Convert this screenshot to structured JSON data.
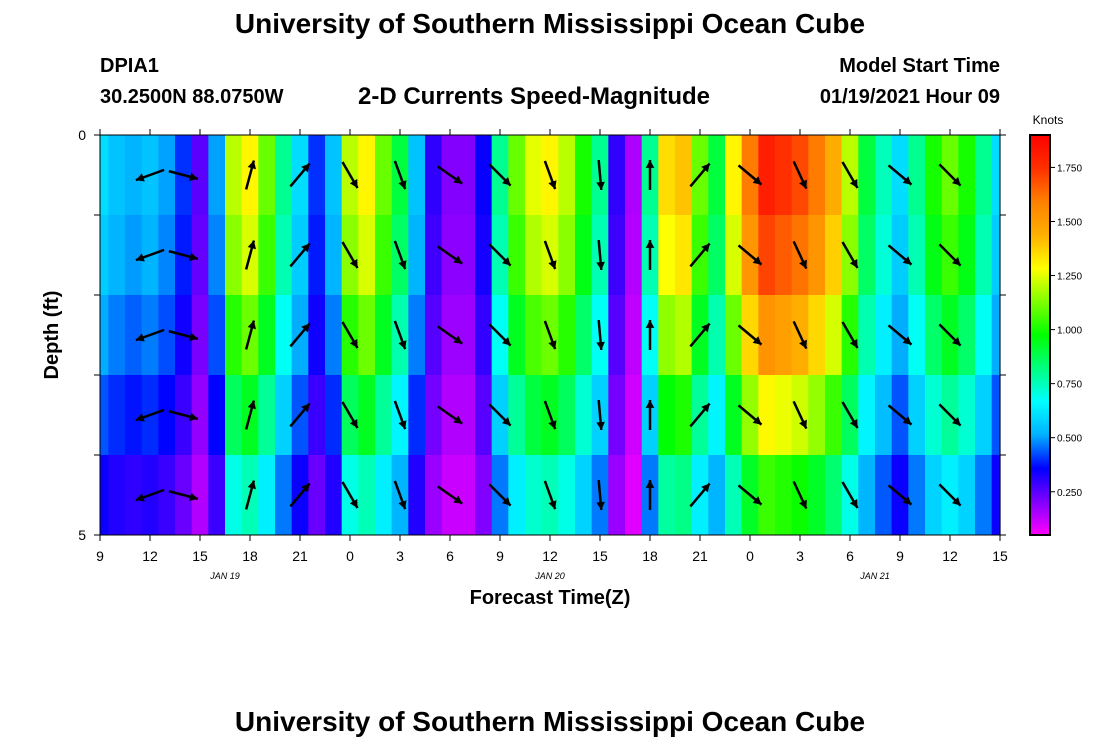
{
  "header": {
    "title": "University of Southern Mississippi Ocean Cube",
    "station": "DPIA1",
    "coordinates": "30.2500N 88.0750W",
    "plot_title": "2-D Currents Speed-Magnitude",
    "model_label": "Model Start Time",
    "model_time": "01/19/2021 Hour 09"
  },
  "footer": {
    "title": "University of Southern Mississippi Ocean Cube"
  },
  "colors": {
    "scale": [
      "#ff00ff",
      "#8000ff",
      "#0000ff",
      "#00b0ff",
      "#00ffff",
      "#00ff80",
      "#00ff00",
      "#80ff00",
      "#ffff00",
      "#ffb000",
      "#ff8000",
      "#ff3000",
      "#ff0000"
    ]
  },
  "chart_data": {
    "type": "heatmap",
    "title": "2-D Currents Speed-Magnitude",
    "xlabel": "Forecast Time(Z)",
    "ylabel": "Depth (ft)",
    "x_start_hour": 9,
    "x_end_hour": 63,
    "xticks": [
      {
        "hour": 9,
        "label": "9"
      },
      {
        "hour": 12,
        "label": "12"
      },
      {
        "hour": 15,
        "label": "15"
      },
      {
        "hour": 18,
        "label": "18"
      },
      {
        "hour": 21,
        "label": "21"
      },
      {
        "hour": 24,
        "label": "0"
      },
      {
        "hour": 27,
        "label": "3"
      },
      {
        "hour": 30,
        "label": "6"
      },
      {
        "hour": 33,
        "label": "9"
      },
      {
        "hour": 36,
        "label": "12"
      },
      {
        "hour": 39,
        "label": "15"
      },
      {
        "hour": 42,
        "label": "18"
      },
      {
        "hour": 45,
        "label": "21"
      },
      {
        "hour": 48,
        "label": "0"
      },
      {
        "hour": 51,
        "label": "3"
      },
      {
        "hour": 54,
        "label": "6"
      },
      {
        "hour": 57,
        "label": "9"
      },
      {
        "hour": 60,
        "label": "12"
      },
      {
        "hour": 63,
        "label": "15"
      }
    ],
    "date_labels": [
      {
        "hour": 16.5,
        "label": "JAN 19"
      },
      {
        "hour": 36,
        "label": "JAN 20"
      },
      {
        "hour": 55.5,
        "label": "JAN 21"
      }
    ],
    "ylim": [
      0,
      5
    ],
    "yticks": [
      {
        "value": 0,
        "label": "0"
      },
      {
        "value": 5,
        "label": "5"
      }
    ],
    "colorbar": {
      "unit": "Knots",
      "min": 0.05,
      "max": 1.9,
      "ticks": [
        {
          "value": 0.25,
          "label": "0.250"
        },
        {
          "value": 0.5,
          "label": "0.500"
        },
        {
          "value": 0.75,
          "label": "0.750"
        },
        {
          "value": 1.0,
          "label": "1.000"
        },
        {
          "value": 1.25,
          "label": "1.250"
        },
        {
          "value": 1.5,
          "label": "1.500"
        },
        {
          "value": 1.75,
          "label": "1.750"
        }
      ]
    },
    "depth_layers": [
      0,
      1,
      2,
      3,
      4,
      5
    ],
    "speed_profile": [
      {
        "hour": 9,
        "v": 0.6
      },
      {
        "hour": 10,
        "v": 0.55
      },
      {
        "hour": 11,
        "v": 0.52
      },
      {
        "hour": 12,
        "v": 0.55
      },
      {
        "hour": 13,
        "v": 0.5
      },
      {
        "hour": 14,
        "v": 0.4
      },
      {
        "hour": 15,
        "v": 0.25
      },
      {
        "hour": 16,
        "v": 0.5
      },
      {
        "hour": 17,
        "v": 1.2
      },
      {
        "hour": 18,
        "v": 1.3
      },
      {
        "hour": 19,
        "v": 1.1
      },
      {
        "hour": 20,
        "v": 0.8
      },
      {
        "hour": 21,
        "v": 0.6
      },
      {
        "hour": 22,
        "v": 0.4
      },
      {
        "hour": 23,
        "v": 0.55
      },
      {
        "hour": 24,
        "v": 1.2
      },
      {
        "hour": 25,
        "v": 1.3
      },
      {
        "hour": 26,
        "v": 1.1
      },
      {
        "hour": 27,
        "v": 0.9
      },
      {
        "hour": 28,
        "v": 0.55
      },
      {
        "hour": 29,
        "v": 0.3
      },
      {
        "hour": 30,
        "v": 0.2
      },
      {
        "hour": 31,
        "v": 0.2
      },
      {
        "hour": 32,
        "v": 0.35
      },
      {
        "hour": 33,
        "v": 0.8
      },
      {
        "hour": 34,
        "v": 1.1
      },
      {
        "hour": 35,
        "v": 1.25
      },
      {
        "hour": 36,
        "v": 1.3
      },
      {
        "hour": 37,
        "v": 1.2
      },
      {
        "hour": 38,
        "v": 1.0
      },
      {
        "hour": 39,
        "v": 0.8
      },
      {
        "hour": 40,
        "v": 0.3
      },
      {
        "hour": 41,
        "v": 0.15
      },
      {
        "hour": 42,
        "v": 0.8
      },
      {
        "hour": 43,
        "v": 1.35
      },
      {
        "hour": 44,
        "v": 1.4
      },
      {
        "hour": 45,
        "v": 1.1
      },
      {
        "hour": 46,
        "v": 0.9
      },
      {
        "hour": 47,
        "v": 1.3
      },
      {
        "hour": 48,
        "v": 1.6
      },
      {
        "hour": 49,
        "v": 1.8
      },
      {
        "hour": 50,
        "v": 1.75
      },
      {
        "hour": 51,
        "v": 1.7
      },
      {
        "hour": 52,
        "v": 1.6
      },
      {
        "hour": 53,
        "v": 1.45
      },
      {
        "hour": 54,
        "v": 1.2
      },
      {
        "hour": 55,
        "v": 0.9
      },
      {
        "hour": 56,
        "v": 0.75
      },
      {
        "hour": 57,
        "v": 0.6
      },
      {
        "hour": 58,
        "v": 0.8
      },
      {
        "hour": 59,
        "v": 1.0
      },
      {
        "hour": 60,
        "v": 1.1
      },
      {
        "hour": 61,
        "v": 1.0
      },
      {
        "hour": 62,
        "v": 0.8
      },
      {
        "hour": 63,
        "v": 0.6
      }
    ],
    "depth_factors": [
      1.0,
      0.95,
      0.85,
      0.72,
      0.58
    ],
    "vectors": [
      {
        "hour": 12,
        "angle": 200
      },
      {
        "hour": 14,
        "angle": -15
      },
      {
        "hour": 18,
        "angle": 75
      },
      {
        "hour": 21,
        "angle": 50
      },
      {
        "hour": 24,
        "angle": -60
      },
      {
        "hour": 27,
        "angle": -70
      },
      {
        "hour": 30,
        "angle": -35
      },
      {
        "hour": 33,
        "angle": -45
      },
      {
        "hour": 36,
        "angle": -70
      },
      {
        "hour": 39,
        "angle": -85
      },
      {
        "hour": 42,
        "angle": 90
      },
      {
        "hour": 45,
        "angle": 50
      },
      {
        "hour": 48,
        "angle": -40
      },
      {
        "hour": 51,
        "angle": -65
      },
      {
        "hour": 54,
        "angle": -60
      },
      {
        "hour": 57,
        "angle": -40
      },
      {
        "hour": 60,
        "angle": -45
      }
    ]
  }
}
